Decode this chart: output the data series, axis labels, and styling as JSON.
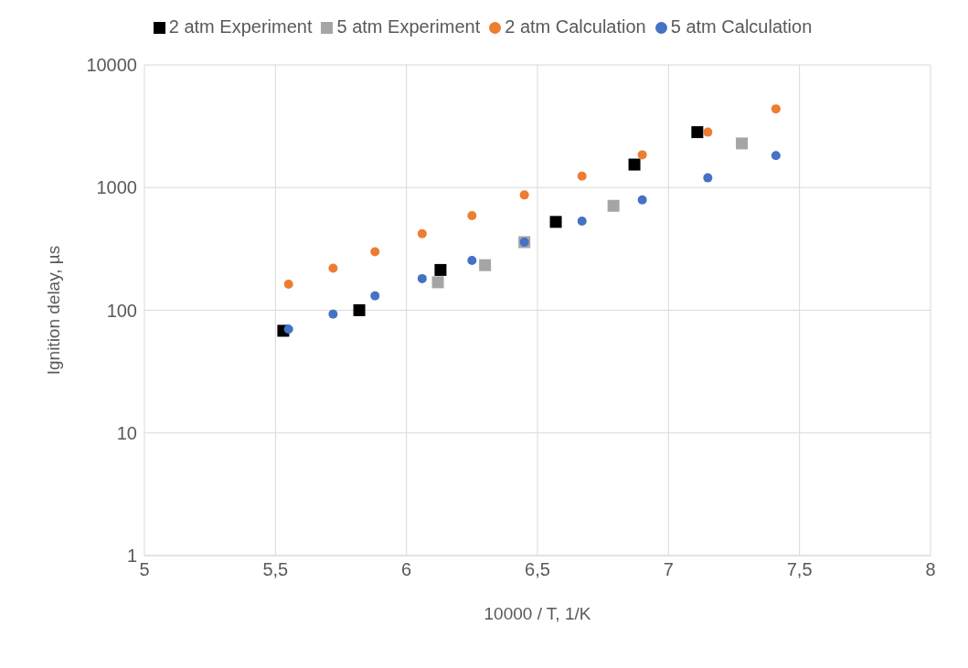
{
  "chart_data": {
    "type": "scatter",
    "xlabel": "10000 / T, 1/K",
    "ylabel": "Ignition delay, µs",
    "log": "y",
    "grid": true,
    "legend": "top",
    "xlim": [
      5,
      8
    ],
    "xticks": [
      5,
      {
        "value": 5.5,
        "label": "5,5"
      },
      6,
      {
        "value": 6.5,
        "label": "6,5"
      },
      7,
      {
        "value": 7.5,
        "label": "7,5"
      },
      8
    ],
    "ylim": [
      1,
      10000
    ],
    "yticks": [
      1,
      10,
      100,
      1000,
      10000
    ],
    "series": [
      {
        "name": "2 atm Experiment",
        "color": "#000000",
        "marker": "square",
        "x": [
          5.53,
          5.82,
          6.13,
          6.57,
          6.87,
          7.11
        ],
        "values": [
          68,
          100,
          213,
          525,
          1540,
          2830
        ]
      },
      {
        "name": "5 atm Experiment",
        "color": "#a5a5a5",
        "marker": "square",
        "x": [
          6.12,
          6.3,
          6.45,
          6.79,
          7.28
        ],
        "values": [
          169,
          233,
          359,
          710,
          2290
        ]
      },
      {
        "name": "2 atm Calculation",
        "color": "#ed7d31",
        "marker": "circle",
        "x": [
          5.55,
          5.72,
          5.88,
          6.06,
          6.25,
          6.45,
          6.67,
          6.9,
          7.15,
          7.41
        ],
        "values": [
          163,
          220,
          300,
          420,
          590,
          870,
          1240,
          1850,
          2830,
          4380
        ]
      },
      {
        "name": "5 atm Calculation",
        "color": "#4472c4",
        "marker": "circle",
        "x": [
          5.55,
          5.72,
          5.88,
          6.06,
          6.25,
          6.45,
          6.67,
          6.9,
          7.15,
          7.41
        ],
        "values": [
          70,
          93,
          131,
          181,
          255,
          359,
          533,
          794,
          1200,
          1820
        ]
      }
    ]
  }
}
